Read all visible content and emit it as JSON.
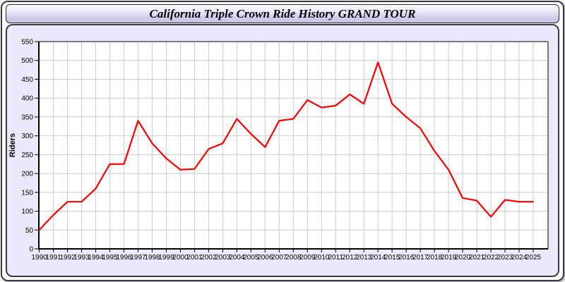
{
  "window": {
    "title": "California Triple Crown Ride History GRAND TOUR"
  },
  "colors": {
    "line": "#ff0000",
    "panel_background": "#eaeafc",
    "plot_background": "#ffffff",
    "grid": "#cccccc",
    "axis": "#000000",
    "text": "#000000"
  },
  "chart_data": {
    "type": "line",
    "title": "California Triple Crown Ride History GRAND TOUR",
    "xlabel": "",
    "ylabel": "Riders",
    "ylim": [
      0,
      550
    ],
    "ytick_step": 50,
    "grid": true,
    "legend": "none",
    "x": [
      1990,
      1991,
      1992,
      1993,
      1994,
      1995,
      1996,
      1997,
      1998,
      1999,
      2000,
      2001,
      2002,
      2003,
      2004,
      2005,
      2006,
      2007,
      2008,
      2009,
      2010,
      2011,
      2012,
      2013,
      2014,
      2015,
      2016,
      2017,
      2018,
      2019,
      2020,
      2021,
      2022,
      2023,
      2024,
      2025
    ],
    "series": [
      {
        "name": "Riders",
        "color": "#ff0000",
        "values": [
          50,
          90,
          125,
          125,
          160,
          225,
          225,
          340,
          280,
          240,
          210,
          212,
          265,
          280,
          345,
          305,
          270,
          340,
          345,
          395,
          375,
          380,
          410,
          385,
          495,
          385,
          350,
          320,
          260,
          210,
          135,
          128,
          85,
          130,
          125,
          125
        ]
      }
    ]
  }
}
